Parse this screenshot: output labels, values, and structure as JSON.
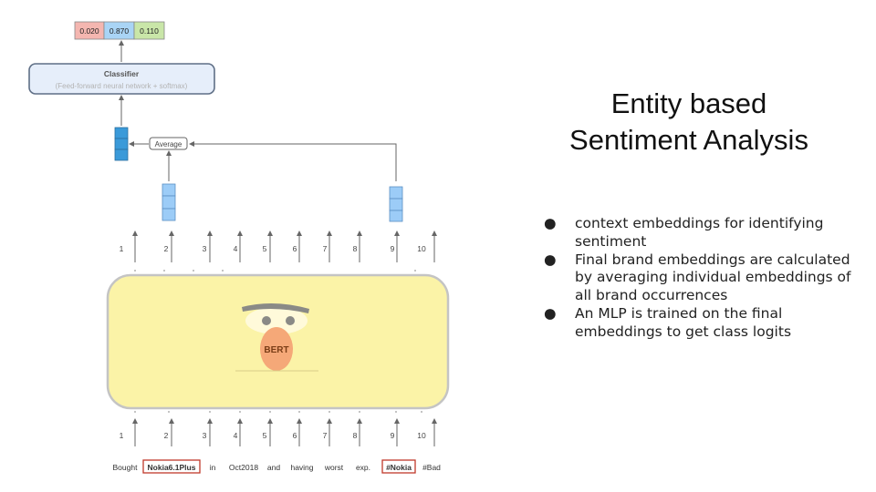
{
  "title_line1": "Entity based",
  "title_line2": "Sentiment Analysis",
  "bullets": [
    "context embeddings for identifying sentiment",
    "Final brand embeddings are calculated by averaging individual embeddings of all brand occurrences",
    "An MLP is trained on the final embeddings to get class logits"
  ],
  "bullet_symbol": "●",
  "diagram": {
    "probabilities": [
      "0.020",
      "0.870",
      "0.110"
    ],
    "probability_colors": [
      "#f4b6b0",
      "#a9d4f5",
      "#c9e6a8"
    ],
    "classifier_title": "Classifier",
    "classifier_subtitle": "(Feed-forward neural network + softmax)",
    "average_label": "Average",
    "model_label": "BERT",
    "model_color": "#fbf3a7",
    "embedding_color": "#9cccf7",
    "final_embedding_color": "#3a9ad9",
    "positions": [
      "1",
      "2",
      "3",
      "4",
      "5",
      "6",
      "7",
      "8",
      "9",
      "10"
    ],
    "tokens": [
      "Bought",
      "Nokia6.1Plus",
      "in",
      "Oct2018",
      "and",
      "having",
      "worst",
      "exp.",
      "#Nokia",
      "#Bad"
    ],
    "highlight_color": "#c0392b"
  }
}
